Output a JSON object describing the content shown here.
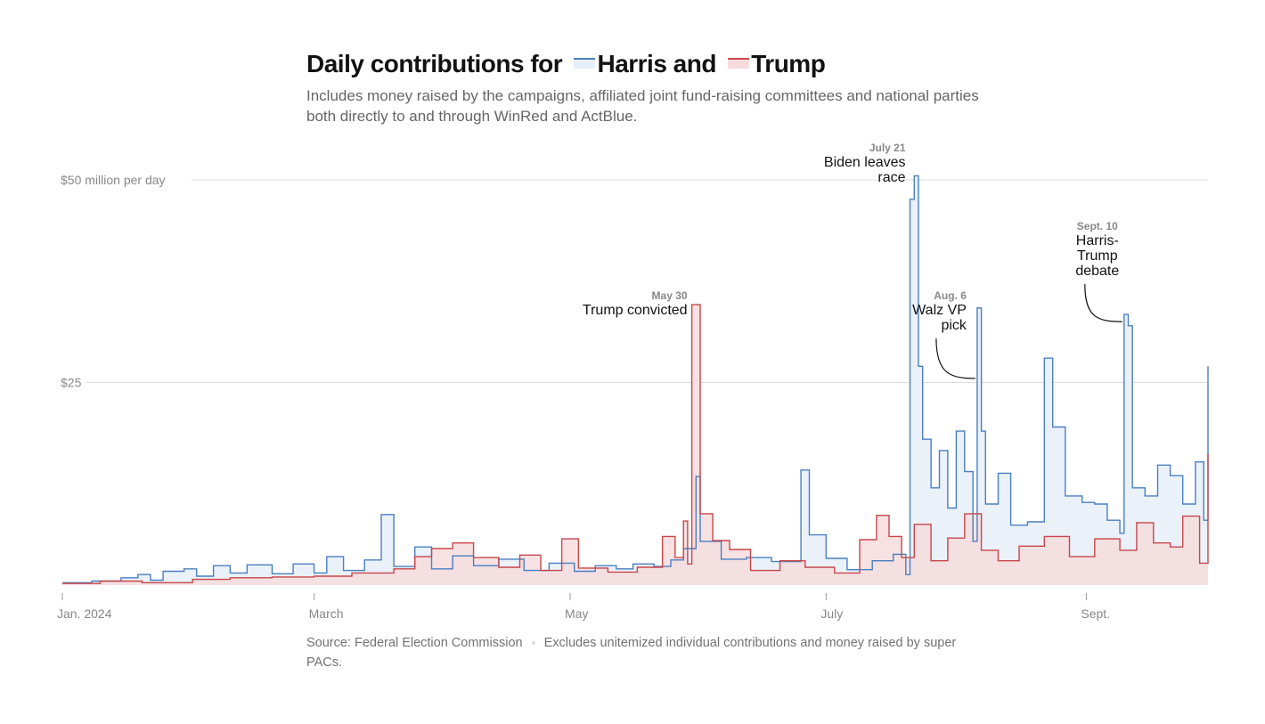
{
  "title": {
    "prefix": "Daily contributions for",
    "harris_label": "Harris and",
    "trump_label": "Trump"
  },
  "subtitle": "Includes money raised by the campaigns, affiliated joint fund-raising committees and national parties both directly to and through WinRed and ActBlue.",
  "footer": {
    "source": "Source: Federal Election Commission",
    "note": "Excludes unitemized individual contributions and money raised by super PACs."
  },
  "colors": {
    "harris": "#4a7fc1",
    "harris_fill": "#e6eef8",
    "trump": "#c8474a",
    "trump_fill": "#f6dcdd",
    "overlap_fill": "#e4e1e8",
    "grid": "#dddddd"
  },
  "chart_data": {
    "type": "area",
    "step": true,
    "x_unit": "day",
    "x_range": [
      "2024-01-01",
      "2024-09-30"
    ],
    "ylim": [
      0,
      50
    ],
    "y_ticks": [
      {
        "value": 25,
        "label": "$25"
      },
      {
        "value": 50,
        "label": "$50 million per day"
      }
    ],
    "x_ticks": [
      {
        "date": "2024-01-01",
        "label": "Jan. 2024"
      },
      {
        "date": "2024-03-01",
        "label": "March"
      },
      {
        "date": "2024-05-01",
        "label": "May"
      },
      {
        "date": "2024-07-01",
        "label": "July"
      },
      {
        "date": "2024-09-01",
        "label": "Sept."
      }
    ],
    "grid": true,
    "series": [
      {
        "name": "Harris",
        "key": "harris",
        "points": [
          [
            "2024-01-01",
            0.3
          ],
          [
            "2024-01-08",
            0.5
          ],
          [
            "2024-01-15",
            0.9
          ],
          [
            "2024-01-19",
            1.3
          ],
          [
            "2024-01-22",
            0.6
          ],
          [
            "2024-01-25",
            1.7
          ],
          [
            "2024-01-30",
            2.0
          ],
          [
            "2024-02-02",
            1.1
          ],
          [
            "2024-02-06",
            2.4
          ],
          [
            "2024-02-10",
            1.5
          ],
          [
            "2024-02-14",
            2.5
          ],
          [
            "2024-02-20",
            1.4
          ],
          [
            "2024-02-25",
            2.6
          ],
          [
            "2024-03-01",
            1.5
          ],
          [
            "2024-03-04",
            3.5
          ],
          [
            "2024-03-08",
            1.8
          ],
          [
            "2024-03-13",
            3.1
          ],
          [
            "2024-03-17",
            8.7
          ],
          [
            "2024-03-20",
            2.3
          ],
          [
            "2024-03-25",
            4.7
          ],
          [
            "2024-03-29",
            2.0
          ],
          [
            "2024-04-03",
            3.6
          ],
          [
            "2024-04-08",
            2.4
          ],
          [
            "2024-04-14",
            3.2
          ],
          [
            "2024-04-20",
            1.8
          ],
          [
            "2024-04-26",
            2.7
          ],
          [
            "2024-05-02",
            1.7
          ],
          [
            "2024-05-07",
            2.4
          ],
          [
            "2024-05-12",
            2.0
          ],
          [
            "2024-05-16",
            2.6
          ],
          [
            "2024-05-21",
            2.3
          ],
          [
            "2024-05-25",
            3.1
          ],
          [
            "2024-05-28",
            4.5
          ],
          [
            "2024-05-31",
            13.4
          ],
          [
            "2024-06-01",
            5.4
          ],
          [
            "2024-06-06",
            3.2
          ],
          [
            "2024-06-12",
            3.4
          ],
          [
            "2024-06-18",
            2.9
          ],
          [
            "2024-06-25",
            14.2
          ],
          [
            "2024-06-27",
            6.2
          ],
          [
            "2024-07-01",
            3.3
          ],
          [
            "2024-07-06",
            1.9
          ],
          [
            "2024-07-12",
            3.0
          ],
          [
            "2024-07-17",
            3.8
          ],
          [
            "2024-07-20",
            1.3
          ],
          [
            "2024-07-21",
            47.6
          ],
          [
            "2024-07-22",
            50.5
          ],
          [
            "2024-07-23",
            27.0
          ],
          [
            "2024-07-24",
            18.0
          ],
          [
            "2024-07-26",
            12.0
          ],
          [
            "2024-07-28",
            16.6
          ],
          [
            "2024-07-30",
            9.5
          ],
          [
            "2024-08-01",
            19.0
          ],
          [
            "2024-08-03",
            14.0
          ],
          [
            "2024-08-05",
            5.4
          ],
          [
            "2024-08-06",
            34.2
          ],
          [
            "2024-08-07",
            19.0
          ],
          [
            "2024-08-08",
            10.0
          ],
          [
            "2024-08-11",
            13.8
          ],
          [
            "2024-08-14",
            7.4
          ],
          [
            "2024-08-18",
            7.8
          ],
          [
            "2024-08-22",
            28.0
          ],
          [
            "2024-08-24",
            19.5
          ],
          [
            "2024-08-27",
            11.0
          ],
          [
            "2024-08-31",
            10.2
          ],
          [
            "2024-09-03",
            10.0
          ],
          [
            "2024-09-06",
            8.0
          ],
          [
            "2024-09-09",
            6.4
          ],
          [
            "2024-09-10",
            33.4
          ],
          [
            "2024-09-11",
            32.0
          ],
          [
            "2024-09-12",
            12.0
          ],
          [
            "2024-09-15",
            11.0
          ],
          [
            "2024-09-18",
            14.8
          ],
          [
            "2024-09-21",
            13.5
          ],
          [
            "2024-09-24",
            10.0
          ],
          [
            "2024-09-27",
            15.2
          ],
          [
            "2024-09-29",
            8.0
          ],
          [
            "2024-09-30",
            27.0
          ]
        ]
      },
      {
        "name": "Trump",
        "key": "trump",
        "points": [
          [
            "2024-01-01",
            0.2
          ],
          [
            "2024-01-10",
            0.5
          ],
          [
            "2024-01-20",
            0.3
          ],
          [
            "2024-02-01",
            0.7
          ],
          [
            "2024-02-10",
            0.9
          ],
          [
            "2024-02-20",
            1.0
          ],
          [
            "2024-03-01",
            1.1
          ],
          [
            "2024-03-10",
            1.5
          ],
          [
            "2024-03-20",
            2.0
          ],
          [
            "2024-03-25",
            3.5
          ],
          [
            "2024-03-29",
            4.5
          ],
          [
            "2024-04-03",
            5.2
          ],
          [
            "2024-04-08",
            3.4
          ],
          [
            "2024-04-14",
            2.2
          ],
          [
            "2024-04-19",
            3.7
          ],
          [
            "2024-04-24",
            1.8
          ],
          [
            "2024-04-29",
            5.7
          ],
          [
            "2024-05-03",
            2.1
          ],
          [
            "2024-05-10",
            1.6
          ],
          [
            "2024-05-17",
            2.2
          ],
          [
            "2024-05-23",
            6.0
          ],
          [
            "2024-05-26",
            3.4
          ],
          [
            "2024-05-28",
            7.9
          ],
          [
            "2024-05-29",
            2.6
          ],
          [
            "2024-05-30",
            34.6
          ],
          [
            "2024-06-01",
            8.8
          ],
          [
            "2024-06-04",
            5.5
          ],
          [
            "2024-06-08",
            4.4
          ],
          [
            "2024-06-13",
            1.8
          ],
          [
            "2024-06-20",
            3.0
          ],
          [
            "2024-06-26",
            2.2
          ],
          [
            "2024-07-03",
            1.5
          ],
          [
            "2024-07-09",
            5.6
          ],
          [
            "2024-07-13",
            8.6
          ],
          [
            "2024-07-16",
            6.0
          ],
          [
            "2024-07-19",
            3.4
          ],
          [
            "2024-07-22",
            7.5
          ],
          [
            "2024-07-26",
            3.0
          ],
          [
            "2024-07-30",
            5.8
          ],
          [
            "2024-08-03",
            8.8
          ],
          [
            "2024-08-07",
            4.3
          ],
          [
            "2024-08-11",
            3.0
          ],
          [
            "2024-08-16",
            4.8
          ],
          [
            "2024-08-22",
            6.0
          ],
          [
            "2024-08-28",
            3.5
          ],
          [
            "2024-09-03",
            5.7
          ],
          [
            "2024-09-09",
            4.3
          ],
          [
            "2024-09-13",
            7.7
          ],
          [
            "2024-09-17",
            5.2
          ],
          [
            "2024-09-21",
            4.7
          ],
          [
            "2024-09-24",
            8.5
          ],
          [
            "2024-09-28",
            2.7
          ],
          [
            "2024-09-30",
            16.2
          ]
        ]
      }
    ],
    "annotations": [
      {
        "date": "2024-05-30",
        "value": 34.6,
        "date_label": "May 30",
        "lines": [
          "Trump convicted"
        ],
        "align": "end",
        "leader": false
      },
      {
        "date": "2024-07-21",
        "value": 50.5,
        "date_label": "July 21",
        "lines": [
          "Biden leaves",
          "race"
        ],
        "align": "end",
        "leader": false
      },
      {
        "date": "2024-08-06",
        "value": 25.5,
        "date_label": "Aug. 6",
        "lines": [
          "Walz VP",
          "pick"
        ],
        "align": "end",
        "leader": true
      },
      {
        "date": "2024-09-10",
        "value": 32.5,
        "date_label": "Sept. 10",
        "lines": [
          "Harris-",
          "Trump",
          "debate"
        ],
        "align": "middle",
        "leader": true
      }
    ]
  }
}
